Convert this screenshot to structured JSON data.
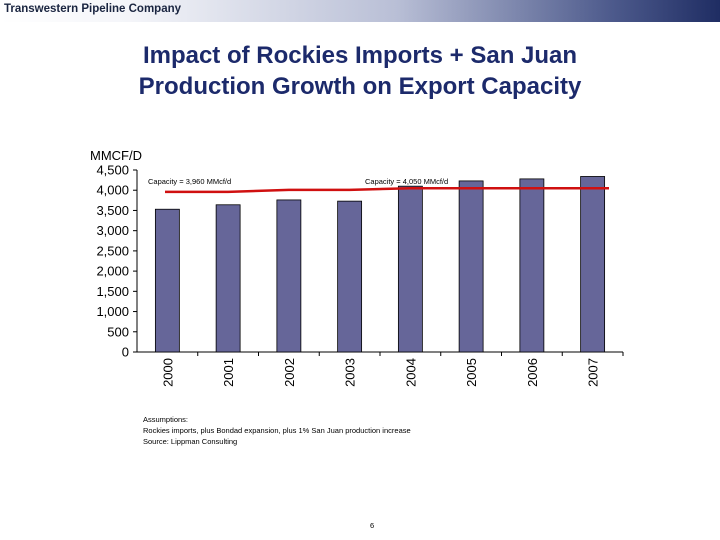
{
  "header": {
    "company": "Transwestern Pipeline Company"
  },
  "slide": {
    "title_line1": "Impact of Rockies Imports + San Juan",
    "title_line2": "Production Growth on Export Capacity",
    "page_number": "6"
  },
  "notes": {
    "line1": "Assumptions:",
    "line2": "Rockies imports, plus Bondad expansion, plus 1% San Juan production increase",
    "line3": "Source:  Lippman Consulting"
  },
  "colors": {
    "bar": "#666699",
    "capacity_line": "#d01010",
    "title": "#1c2a6b"
  },
  "chart_data": {
    "type": "bar",
    "ylabel": "MMCF/D",
    "categories": [
      "2000",
      "2001",
      "2002",
      "2003",
      "2004",
      "2005",
      "2006",
      "2007"
    ],
    "series": [
      {
        "values": [
          3530,
          3640,
          3760,
          3730,
          4100,
          4230,
          4280,
          4340
        ]
      }
    ],
    "capacity_line": {
      "type": "line",
      "values": [
        3960,
        3960,
        4010,
        4010,
        4050,
        4050,
        4050,
        4050
      ]
    },
    "ylim": [
      0,
      4500
    ],
    "yticks": [
      0,
      500,
      1000,
      1500,
      2000,
      2500,
      3000,
      3500,
      4000,
      4500
    ],
    "ytick_labels": [
      "0",
      "500",
      "1,000",
      "1,500",
      "2,000",
      "2,500",
      "3,000",
      "3,500",
      "4,000",
      "4,500"
    ],
    "annotations": [
      "Capacity = 3,960 MMcf/d",
      "Capacity = 4,050 MMcf/d"
    ],
    "grid": false
  }
}
